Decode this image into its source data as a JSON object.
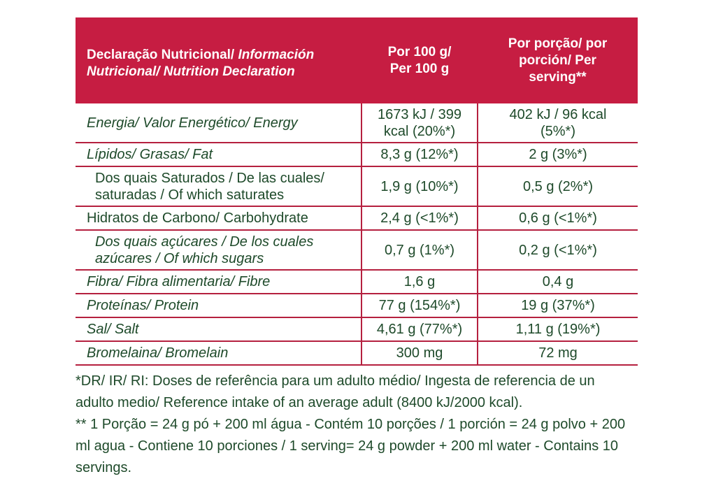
{
  "header": {
    "title": [
      "Declaração Nutricional/ ",
      "Información Nutricional/ Nutrition Declaration"
    ],
    "per_100g": [
      "Por 100 g/",
      "Per 100 g"
    ],
    "per_serving": [
      "Por porção/ por",
      "porción/ Per",
      "serving**"
    ]
  },
  "rows": [
    {
      "label": [
        "Energia/ Valor Energético/ Energy"
      ],
      "per_100g": [
        "1673 kJ / 399",
        "kcal (20%*)"
      ],
      "per_serving": [
        "402 kJ / 96 kcal",
        "(5%*)"
      ]
    },
    {
      "label": [
        "Lípidos/ Grasas/ Fat"
      ],
      "per_100g": [
        "8,3 g (12%*)"
      ],
      "per_serving": [
        "2 g (3%*)"
      ]
    },
    {
      "label": [
        "Dos quais Saturados / De las cuales/",
        "saturadas / Of which saturates"
      ],
      "per_100g": [
        "1,9 g (10%*)"
      ],
      "per_serving": [
        "0,5 g (2%*)"
      ]
    },
    {
      "label": [
        "Hidratos de Carbono/ Carbohydrate"
      ],
      "per_100g": [
        "2,4 g (<1%*)"
      ],
      "per_serving": [
        "0,6 g (<1%*)"
      ]
    },
    {
      "label": [
        "Dos quais açúcares / De los cuales",
        "azúcares / Of which sugars"
      ],
      "per_100g": [
        "0,7 g (1%*)"
      ],
      "per_serving": [
        "0,2 g (<1%*)"
      ]
    },
    {
      "label": [
        "Fibra/ Fibra alimentaria/ Fibre"
      ],
      "per_100g": [
        "1,6 g"
      ],
      "per_serving": [
        "0,4 g"
      ]
    },
    {
      "label": [
        "Proteínas/ Protein"
      ],
      "per_100g": [
        "77 g (154%*)"
      ],
      "per_serving": [
        "19 g (37%*)"
      ]
    },
    {
      "label": [
        "Sal/ Salt"
      ],
      "per_100g": [
        "4,61 g (77%*)"
      ],
      "per_serving": [
        "1,11 g (19%*)"
      ]
    },
    {
      "label": [
        "Bromelaina/ Bromelain"
      ],
      "per_100g": [
        "300 mg"
      ],
      "per_serving": [
        "72 mg"
      ]
    }
  ],
  "footnotes": [
    "*DR/ IR/ RI: Doses de referência para um adulto médio/ Ingesta de referencia de un adulto medio/ Reference intake of an average adult  (8400 kJ/2000 kcal).",
    "** 1 Porção = 24 g pó + 200 ml água - Contém 10 porções / 1 porción = 24 g polvo + 200 ml agua - Contiene 10 porciones / 1 serving= 24 g powder + 200 ml water - Contains 10 servings."
  ]
}
